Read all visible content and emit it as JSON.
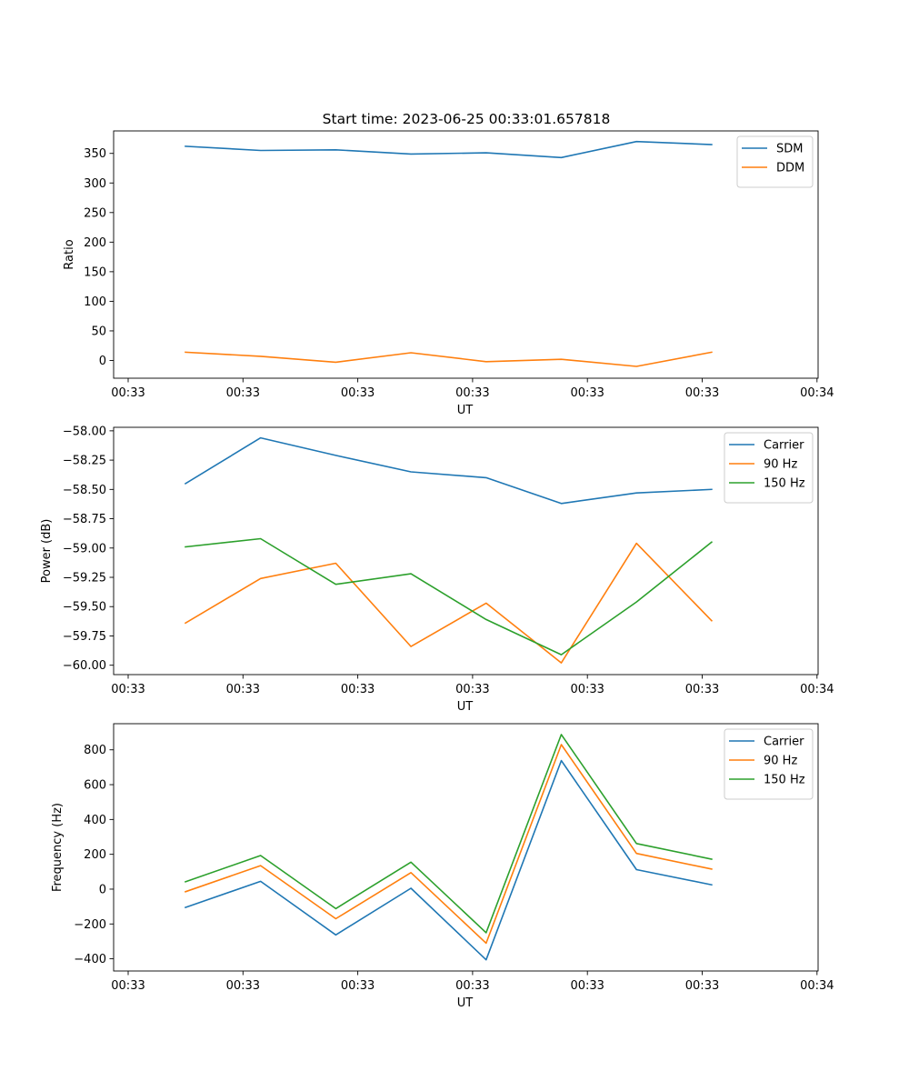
{
  "figure": {
    "title": "Start time: 2023-06-25 00:33:01.657818"
  },
  "chart_data": [
    {
      "type": "line",
      "title": "Start time: 2023-06-25 00:33:01.657818",
      "xlabel": "UT",
      "ylabel": "Ratio",
      "x_tick_labels": [
        "00:33",
        "00:33",
        "00:33",
        "00:33",
        "00:33",
        "00:33",
        "00:34"
      ],
      "yticks": [
        0,
        50,
        100,
        150,
        200,
        250,
        300,
        350
      ],
      "ylim": [
        -30,
        388
      ],
      "grid": false,
      "legend_position": "top-right",
      "series": [
        {
          "name": "SDM",
          "color": "#1f77b4",
          "values": [
            362,
            355,
            356,
            349,
            351,
            343,
            370,
            365
          ]
        },
        {
          "name": "DDM",
          "color": "#ff7f0e",
          "values": [
            14,
            7,
            -3,
            13,
            -2,
            2,
            -10,
            14
          ]
        }
      ]
    },
    {
      "type": "line",
      "xlabel": "UT",
      "ylabel": "Power (dB)",
      "x_tick_labels": [
        "00:33",
        "00:33",
        "00:33",
        "00:33",
        "00:33",
        "00:33",
        "00:34"
      ],
      "yticks": [
        -60.0,
        -59.75,
        -59.5,
        -59.25,
        -59.0,
        -58.75,
        -58.5,
        -58.25,
        -58.0
      ],
      "ytick_labels": [
        "−60.00",
        "−59.75",
        "−59.50",
        "−59.25",
        "−59.00",
        "−58.75",
        "−58.50",
        "−58.25",
        "−58.00"
      ],
      "ylim": [
        -60.08,
        -57.97
      ],
      "grid": false,
      "legend_position": "top-right",
      "series": [
        {
          "name": "Carrier",
          "color": "#1f77b4",
          "values": [
            -58.45,
            -58.06,
            -58.21,
            -58.35,
            -58.4,
            -58.62,
            -58.53,
            -58.5
          ]
        },
        {
          "name": "90 Hz",
          "color": "#ff7f0e",
          "values": [
            -59.64,
            -59.26,
            -59.13,
            -59.84,
            -59.47,
            -59.98,
            -58.96,
            -59.62
          ]
        },
        {
          "name": "150 Hz",
          "color": "#2ca02c",
          "values": [
            -58.99,
            -58.92,
            -59.31,
            -59.22,
            -59.61,
            -59.91,
            -59.46,
            -58.95
          ]
        }
      ]
    },
    {
      "type": "line",
      "xlabel": "UT",
      "ylabel": "Frequency (Hz)",
      "x_tick_labels": [
        "00:33",
        "00:33",
        "00:33",
        "00:33",
        "00:33",
        "00:33",
        "00:34"
      ],
      "yticks": [
        -400,
        -200,
        0,
        200,
        400,
        600,
        800
      ],
      "ytick_labels": [
        "−400",
        "−200",
        "0",
        "200",
        "400",
        "600",
        "800"
      ],
      "ylim": [
        -470,
        950
      ],
      "grid": false,
      "legend_position": "top-right",
      "series": [
        {
          "name": "Carrier",
          "color": "#1f77b4",
          "values": [
            -105,
            45,
            -263,
            5,
            -406,
            738,
            112,
            25
          ]
        },
        {
          "name": "90 Hz",
          "color": "#ff7f0e",
          "values": [
            -15,
            135,
            -170,
            95,
            -310,
            830,
            205,
            115
          ]
        },
        {
          "name": "150 Hz",
          "color": "#2ca02c",
          "values": [
            42,
            193,
            -112,
            155,
            -250,
            888,
            262,
            172
          ]
        }
      ]
    }
  ]
}
